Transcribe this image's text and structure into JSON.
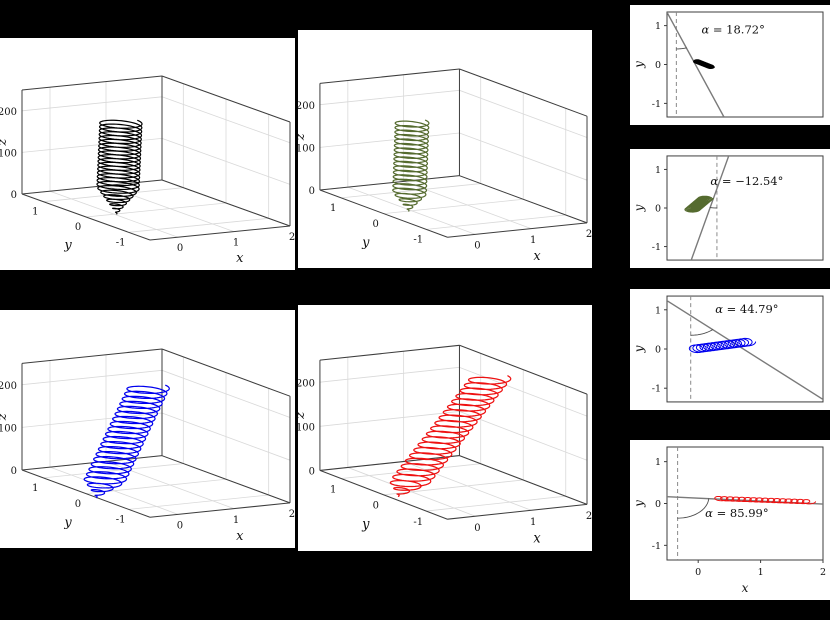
{
  "figure": {
    "background": "#000000",
    "panel_background": "#ffffff"
  },
  "styles": {
    "grid_color": "#d9d9d9",
    "box_color": "#3d3d3d",
    "tick_color": "#111111",
    "guide_line_color": "#7a7a7a",
    "dashed_line_color": "#8a8a8a",
    "arc_color": "#4d4d4d"
  },
  "chart_data": [
    {
      "id": "traj3d-black",
      "type": "line3d",
      "series_color": "#000000",
      "xlabel": "x",
      "ylabel": "y",
      "zlabel": "z",
      "xlim": [
        -0.5,
        2
      ],
      "ylim": [
        -1.5,
        1.5
      ],
      "zlim": [
        0,
        250
      ],
      "xticks": [
        0,
        1,
        2
      ],
      "yticks": [
        -1,
        0,
        1
      ],
      "zticks": [
        0,
        100,
        200
      ],
      "helix": {
        "x0": 0.05,
        "y0": 0.0,
        "drift_x": 0.15,
        "drift_y": 0.1,
        "radius_x": 0.3,
        "radius_y": 0.3,
        "turns": 24,
        "z_max": 215,
        "taper": 0.28
      }
    },
    {
      "id": "traj3d-green",
      "type": "line3d",
      "series_color": "#556b2f",
      "xlabel": "x",
      "ylabel": "y",
      "zlabel": "z",
      "xlim": [
        -0.5,
        2
      ],
      "ylim": [
        -1.5,
        1.5
      ],
      "zlim": [
        0,
        250
      ],
      "xticks": [
        0,
        1,
        2
      ],
      "yticks": [
        -1,
        0,
        1
      ],
      "zticks": [
        0,
        100,
        200
      ],
      "helix": {
        "x0": -0.05,
        "y0": 0.0,
        "drift_x": 0.12,
        "drift_y": 0.08,
        "radius_x": 0.24,
        "radius_y": 0.24,
        "turns": 20,
        "z_max": 205,
        "taper": 0.2
      }
    },
    {
      "id": "traj3d-blue",
      "type": "line3d",
      "series_color": "#0000ee",
      "xlabel": "x",
      "ylabel": "y",
      "zlabel": "z",
      "xlim": [
        -0.5,
        2
      ],
      "ylim": [
        -1.5,
        1.5
      ],
      "zlim": [
        0,
        250
      ],
      "xticks": [
        0,
        1,
        2
      ],
      "yticks": [
        -1,
        0,
        1
      ],
      "zticks": [
        0,
        100,
        200
      ],
      "helix": {
        "x0": -0.5,
        "y0": -0.25,
        "drift_x": 1.2,
        "drift_y": 0.35,
        "radius_x": 0.3,
        "radius_y": 0.28,
        "turns": 22,
        "z_max": 230,
        "taper": 0.15
      }
    },
    {
      "id": "traj3d-red",
      "type": "line3d",
      "series_color": "#ee1111",
      "xlabel": "x",
      "ylabel": "y",
      "zlabel": "z",
      "xlim": [
        -0.5,
        2
      ],
      "ylim": [
        -1.5,
        1.5
      ],
      "zlim": [
        0,
        250
      ],
      "xticks": [
        0,
        1,
        2
      ],
      "yticks": [
        -1,
        0,
        1
      ],
      "zticks": [
        0,
        100,
        200
      ],
      "helix": {
        "x0": -0.35,
        "y0": -0.15,
        "drift_x": 1.85,
        "drift_y": 0.25,
        "radius_x": 0.3,
        "radius_y": 0.26,
        "turns": 22,
        "z_max": 235,
        "taper": 0.12
      }
    },
    {
      "id": "view2d-black",
      "type": "line2d",
      "series_color": "#000000",
      "ylabel": "y",
      "xlabel": "x",
      "show_x_axis": false,
      "xlim": [
        -0.5,
        2
      ],
      "ylim": [
        -1.35,
        1.35
      ],
      "yticks": [
        -1,
        0,
        1
      ],
      "xticks": [
        0,
        1,
        2
      ],
      "alpha_deg": 18.72,
      "alpha_symbol": "α",
      "alpha_text": "= 18.72°",
      "dashed_x": -0.35,
      "line_point": [
        -0.35,
        0.9
      ],
      "arc_radius": 0.5,
      "label_pos": [
        0.56,
        0.8
      ],
      "loops": {
        "x0": -0.02,
        "y0": 0.08,
        "drift_x": 0.22,
        "drift_y": -0.14,
        "radius_x": 0.06,
        "radius_y": 0.045,
        "turns": 18
      }
    },
    {
      "id": "view2d-green",
      "type": "line2d",
      "series_color": "#556b2f",
      "ylabel": "y",
      "xlabel": "x",
      "show_x_axis": false,
      "xlim": [
        -0.5,
        2
      ],
      "ylim": [
        -1.35,
        1.35
      ],
      "yticks": [
        -1,
        0,
        1
      ],
      "xticks": [
        0,
        1,
        2
      ],
      "alpha_deg": -12.54,
      "alpha_symbol": "α",
      "alpha_text": "= −12.54°",
      "dashed_x": 0.3,
      "line_point": [
        0.3,
        0.5
      ],
      "arc_radius": 0.5,
      "label_pos": [
        0.78,
        0.6
      ],
      "loops": {
        "x0": -0.1,
        "y0": -0.05,
        "drift_x": 0.22,
        "drift_y": 0.3,
        "radius_x": 0.12,
        "radius_y": 0.07,
        "turns": 16
      }
    },
    {
      "id": "view2d-blue",
      "type": "line2d",
      "series_color": "#0000ee",
      "ylabel": "y",
      "xlabel": "x",
      "show_x_axis": false,
      "xlim": [
        -0.5,
        2
      ],
      "ylim": [
        -1.35,
        1.35
      ],
      "yticks": [
        -1,
        0,
        1
      ],
      "xticks": [
        0,
        1,
        2
      ],
      "alpha_deg": 44.79,
      "alpha_symbol": "α",
      "alpha_text": "= 44.79°",
      "dashed_x": -0.12,
      "line_point": [
        -0.12,
        0.85
      ],
      "arc_radius": 0.5,
      "label_pos": [
        0.78,
        0.92
      ],
      "loops": {
        "x0": -0.05,
        "y0": 0.0,
        "drift_x": 0.85,
        "drift_y": 0.18,
        "radius_x": 0.12,
        "radius_y": 0.1,
        "turns": 15
      }
    },
    {
      "id": "view2d-red",
      "type": "line2d",
      "series_color": "#ee1111",
      "ylabel": "y",
      "xlabel": "x",
      "show_x_axis": true,
      "xlim": [
        -0.5,
        2
      ],
      "ylim": [
        -1.35,
        1.35
      ],
      "yticks": [
        -1,
        0,
        1
      ],
      "xticks": [
        0,
        1,
        2
      ],
      "alpha_deg": 85.99,
      "alpha_symbol": "α",
      "alpha_text": "= 85.99°",
      "dashed_x": -0.33,
      "line_point": [
        -0.33,
        0.15
      ],
      "arc_radius": 0.5,
      "label_pos": [
        0.62,
        -0.32
      ],
      "loops": {
        "x0": 0.3,
        "y0": 0.12,
        "drift_x": 1.5,
        "drift_y": -0.08,
        "radius_x": 0.08,
        "radius_y": 0.05,
        "turns": 16
      }
    }
  ]
}
